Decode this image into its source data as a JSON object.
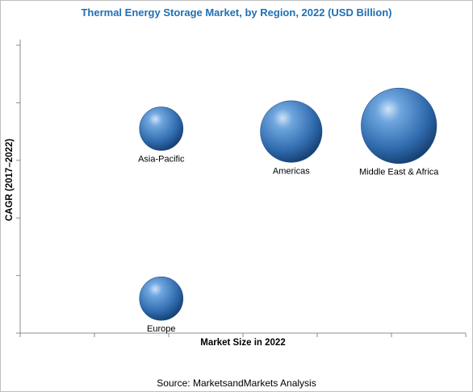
{
  "chart_data": {
    "type": "bubble",
    "title": "Thermal Energy Storage Market, by Region, 2022 (USD Billion)",
    "xlabel": "Market Size in 2022",
    "ylabel": "CAGR (2017–2022)",
    "source": "Source: MarketsandMarkets Analysis",
    "xlim": [
      0,
      6
    ],
    "ylim": [
      0,
      5
    ],
    "axis_tick_labels_shown": false,
    "bubble_color": "#3d7ec4",
    "series": [
      {
        "name": "Asia-Pacific",
        "x": 1.9,
        "y": 3.55,
        "size": 1.0
      },
      {
        "name": "Americas",
        "x": 3.65,
        "y": 3.5,
        "size": 2.0
      },
      {
        "name": "Middle East & Africa",
        "x": 5.1,
        "y": 3.6,
        "size": 3.0
      },
      {
        "name": "Europe",
        "x": 1.9,
        "y": 0.6,
        "size": 1.0
      }
    ]
  }
}
